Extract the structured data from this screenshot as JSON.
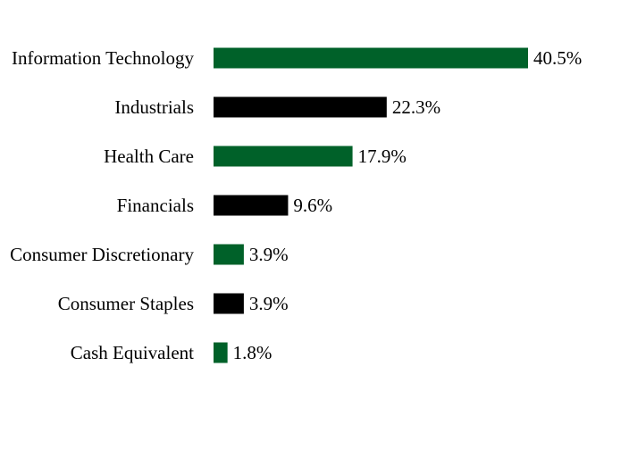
{
  "chart_data": {
    "type": "bar",
    "orientation": "horizontal",
    "categories": [
      "Information Technology",
      "Industrials",
      "Health Care",
      "Financials",
      "Consumer Discretionary",
      "Consumer Staples",
      "Cash Equivalent"
    ],
    "values": [
      40.5,
      22.3,
      17.9,
      9.6,
      3.9,
      3.9,
      1.8
    ],
    "value_labels": [
      "40.5%",
      "22.3%",
      "17.9%",
      "9.6%",
      "3.9%",
      "3.9%",
      "1.8%"
    ],
    "bar_colors": [
      "#006129",
      "#000000",
      "#006129",
      "#000000",
      "#006129",
      "#000000",
      "#006129"
    ],
    "grid": false,
    "legend": "none",
    "xlim": [
      0,
      40.5
    ]
  }
}
